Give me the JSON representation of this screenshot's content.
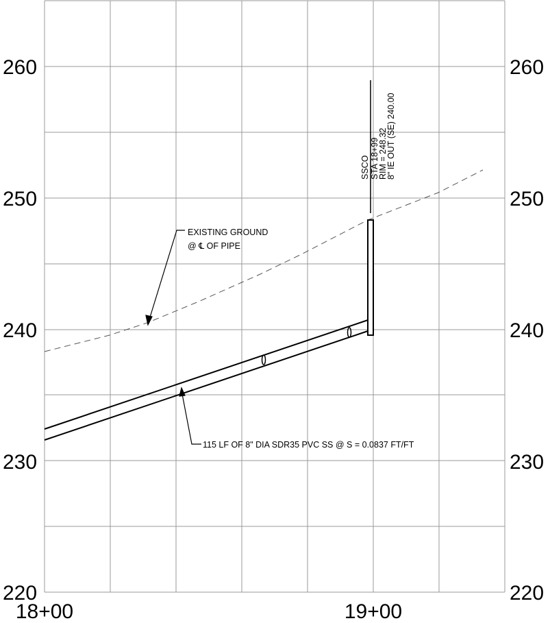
{
  "elevations": [
    "260",
    "250",
    "240",
    "230",
    "220"
  ],
  "stations": [
    "18+00",
    "19+00"
  ],
  "ground_note": {
    "line1": "EXISTING GROUND",
    "line2": "@ ℄ OF PIPE"
  },
  "pipe_note": "115 LF OF 8\" DIA SDR35 PVC SS @ S = 0.0837 FT/FT",
  "structure": {
    "name": "SSCO",
    "station": "STA 18+99",
    "rim": "RIM = 248.32",
    "invert": "8\" IE OUT (SE) 240.00"
  }
}
